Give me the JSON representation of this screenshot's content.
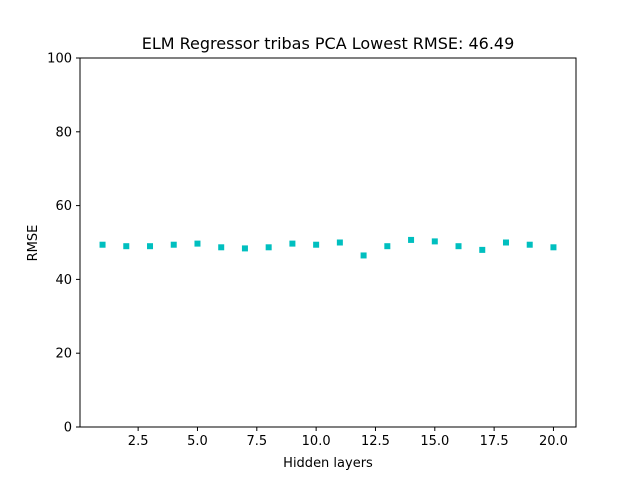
{
  "chart_data": {
    "type": "scatter",
    "title": "ELM Regressor tribas PCA Lowest RMSE: 46.49",
    "xlabel": "Hidden layers",
    "ylabel": "RMSE",
    "xlim": [
      0.05,
      20.95
    ],
    "ylim": [
      0,
      100
    ],
    "xticks": [
      2.5,
      5.0,
      7.5,
      10.0,
      12.5,
      15.0,
      17.5,
      20.0
    ],
    "xtick_labels": [
      "2.5",
      "5.0",
      "7.5",
      "10.0",
      "12.5",
      "15.0",
      "17.5",
      "20.0"
    ],
    "yticks": [
      0,
      20,
      40,
      60,
      80,
      100
    ],
    "ytick_labels": [
      "0",
      "20",
      "40",
      "60",
      "80",
      "100"
    ],
    "grid": false,
    "marker": "square",
    "color": "#00bfbf",
    "series": [
      {
        "x": [
          1,
          2,
          3,
          4,
          5,
          6,
          7,
          8,
          9,
          10,
          11,
          12,
          13,
          14,
          15,
          16,
          17,
          18,
          19,
          20
        ],
        "y": [
          49.4,
          49.0,
          49.0,
          49.4,
          49.7,
          48.7,
          48.4,
          48.7,
          49.7,
          49.4,
          50.0,
          46.49,
          49.0,
          50.7,
          50.3,
          49.0,
          48.0,
          50.0,
          49.4,
          48.7
        ]
      }
    ]
  }
}
